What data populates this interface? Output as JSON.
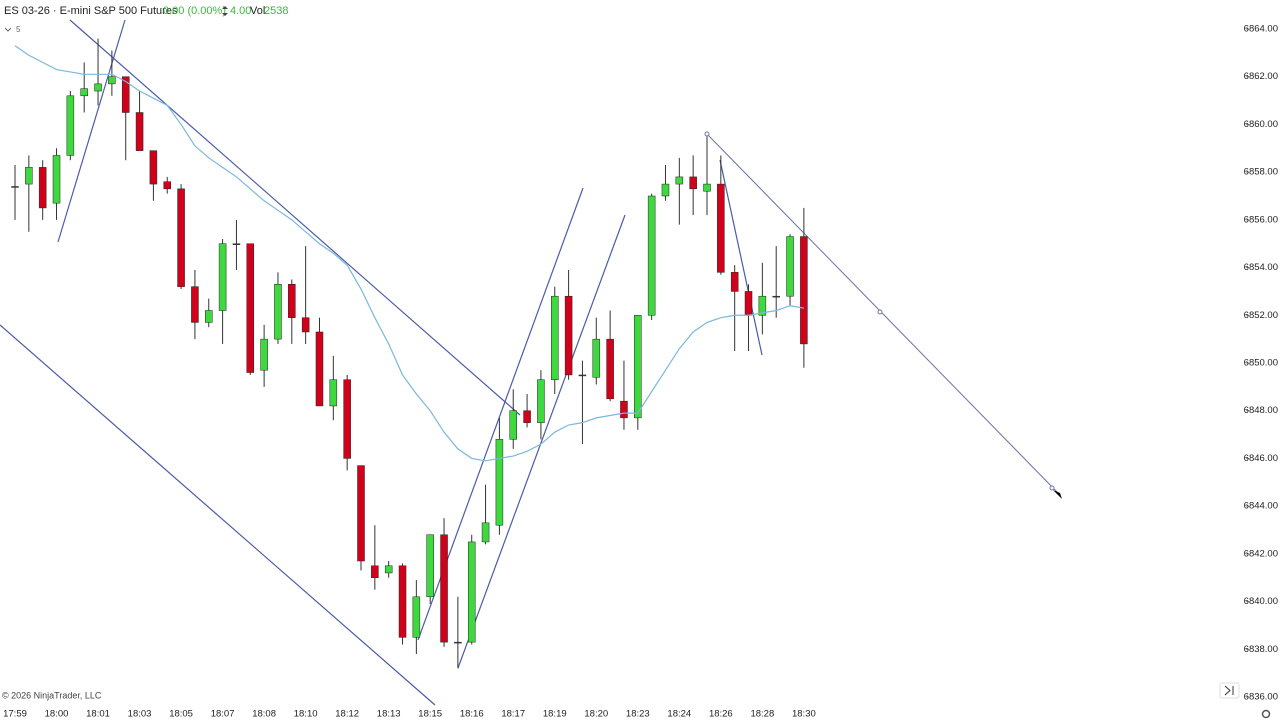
{
  "header": {
    "symbol": "ES 03-26 · E-mini S&P 500 Futures",
    "change": "0.00 (0.00%)",
    "range": "4.00",
    "volume_label": "Vol",
    "volume": "2538",
    "interval": "5"
  },
  "copyright": "© 2026 NinjaTrader, LLC",
  "chart_data": {
    "type": "candlestick",
    "categories": [
      "17:59",
      null,
      null,
      "18:00",
      null,
      null,
      "18:01",
      null,
      null,
      "18:03",
      null,
      null,
      "18:05",
      null,
      null,
      "18:07",
      null,
      null,
      "18:08",
      null,
      null,
      "18:10",
      null,
      null,
      "18:12",
      null,
      null,
      "18:13",
      null,
      null,
      "18:15",
      null,
      null,
      "18:16",
      null,
      null,
      "18:17",
      null,
      null,
      "18:19",
      null,
      null,
      "18:20",
      null,
      null,
      "18:23",
      null,
      null,
      "18:24",
      null,
      null,
      "18:26",
      null,
      null,
      "18:28",
      null,
      null,
      "18:30"
    ],
    "open": [
      6857.4,
      6857.5,
      6858.2,
      6856.7,
      6858.7,
      6861.2,
      6861.4,
      6861.7,
      6862,
      6860.5,
      6858.9,
      6857.6,
      6857.3,
      6853.2,
      6851.7,
      6852.2,
      6855,
      6855,
      6849.7,
      6851,
      6853.3,
      6851.9,
      6851.3,
      6848.2,
      6849.3,
      6845.7,
      6841.5,
      6841.2,
      6841.5,
      6838.5,
      6840.2,
      6842.8,
      6838.3,
      6838.3,
      6842.5,
      6843.2,
      6846.8,
      6848,
      6847.5,
      6849.3,
      6852.8,
      6849.5,
      6849.4,
      6851,
      6848.4,
      6847.7,
      6852,
      6857,
      6857.5,
      6857.8,
      6857.2,
      6857.5,
      6853.8,
      6853,
      6852,
      6852.8,
      6852.8,
      6855.3
    ],
    "high": [
      6858.3,
      6858.7,
      6858.5,
      6859,
      6861.4,
      6862.6,
      6863.6,
      6863.1,
      6862,
      6861.4,
      6858.9,
      6857.8,
      6857.5,
      6853.9,
      6852.7,
      6855.2,
      6856,
      6855,
      6851.6,
      6853.8,
      6853.5,
      6854.9,
      6851.9,
      6850.3,
      6849.5,
      6845.7,
      6843.2,
      6841.7,
      6841.6,
      6840.9,
      6842.8,
      6843.5,
      6840.2,
      6842.8,
      6844.9,
      6847.7,
      6848.9,
      6848.7,
      6849.7,
      6853.2,
      6853.9,
      6850.1,
      6851.9,
      6852.2,
      6850.1,
      6852,
      6857.1,
      6858.3,
      6858.6,
      6858.7,
      6859.5,
      6858.7,
      6854.1,
      6853.3,
      6854.2,
      6854.9,
      6855.4,
      6856.5
    ],
    "low": [
      6856,
      6855.5,
      6856,
      6856,
      6858.5,
      6860.5,
      6860.8,
      6861.2,
      6858.5,
      6858.9,
      6856.8,
      6857.1,
      6853.1,
      6851,
      6851.5,
      6850.8,
      6853.9,
      6849.5,
      6849,
      6850.8,
      6850.8,
      6850.8,
      6848.2,
      6847.6,
      6845.5,
      6841.3,
      6840.5,
      6841,
      6838.2,
      6837.8,
      6839.9,
      6838.1,
      6837.2,
      6838.2,
      6842.4,
      6842.8,
      6846.4,
      6847.3,
      6846.8,
      6848.7,
      6849.3,
      6846.6,
      6849.1,
      6848.4,
      6847.2,
      6847.2,
      6851.8,
      6856.8,
      6855.8,
      6856.2,
      6856.2,
      6853.7,
      6850.5,
      6850.5,
      6851.2,
      6851.9,
      6852.4,
      6849.8
    ],
    "close": [
      6857.4,
      6858.2,
      6856.5,
      6858.7,
      6861.2,
      6861.5,
      6861.7,
      6862,
      6860.5,
      6858.9,
      6857.5,
      6857.3,
      6853.2,
      6851.7,
      6852.2,
      6855,
      6855,
      6849.6,
      6851,
      6853.3,
      6851.9,
      6851.3,
      6848.2,
      6849.3,
      6846,
      6841.7,
      6841,
      6841.5,
      6838.5,
      6840.2,
      6842.8,
      6838.3,
      6838.3,
      6842.5,
      6843.3,
      6846.8,
      6848,
      6847.5,
      6849.3,
      6852.8,
      6849.5,
      6849.5,
      6851,
      6848.5,
      6847.7,
      6852,
      6857,
      6857.5,
      6857.8,
      6857.3,
      6857.5,
      6853.8,
      6853,
      6852,
      6852.8,
      6852.8,
      6855.3,
      6850.8
    ],
    "up_color": "#3fd83f",
    "down_color": "#d0021b",
    "moving_average": {
      "color": "#7ab8dc",
      "values": [
        6863.3,
        6862.9,
        6862.6,
        6862.3,
        6862.2,
        6862.1,
        6862.1,
        6862.1,
        6861.8,
        6861.4,
        6861.1,
        6860.8,
        6860.0,
        6859.1,
        6858.6,
        6858.2,
        6857.8,
        6857.3,
        6856.8,
        6856.4,
        6856.0,
        6855.5,
        6855.0,
        6854.6,
        6854.1,
        6853.1,
        6851.9,
        6850.8,
        6849.5,
        6848.7,
        6848.0,
        6847.1,
        6846.4,
        6846.0,
        6845.9,
        6846.0,
        6846.1,
        6846.3,
        6846.6,
        6847.1,
        6847.4,
        6847.5,
        6847.7,
        6847.8,
        6847.9,
        6847.9,
        6848.8,
        6849.7,
        6850.6,
        6851.3,
        6851.7,
        6851.9,
        6852.0,
        6852.0,
        6852.1,
        6852.2,
        6852.4,
        6852.3
      ]
    },
    "ylim": [
      6836,
      6864
    ],
    "yticks": [
      {
        "value": 6836,
        "label": "6836.00"
      },
      {
        "value": 6838,
        "label": "6838.00"
      },
      {
        "value": 6840,
        "label": "6840.00"
      },
      {
        "value": 6842,
        "label": "6842.00"
      },
      {
        "value": 6844,
        "label": "6844.00"
      },
      {
        "value": 6846,
        "label": "6846.00"
      },
      {
        "value": 6848,
        "label": "6848.00"
      },
      {
        "value": 6850,
        "label": "6850.00"
      },
      {
        "value": 6852,
        "label": "6852.00"
      },
      {
        "value": 6854,
        "label": "6854.00"
      },
      {
        "value": 6856,
        "label": "6856.00"
      },
      {
        "value": 6858,
        "label": "6858.00"
      },
      {
        "value": 6860,
        "label": "6860.00"
      },
      {
        "value": 6862,
        "label": "6862.00"
      },
      {
        "value": 6864,
        "label": "6864.00"
      }
    ],
    "grid": false
  }
}
